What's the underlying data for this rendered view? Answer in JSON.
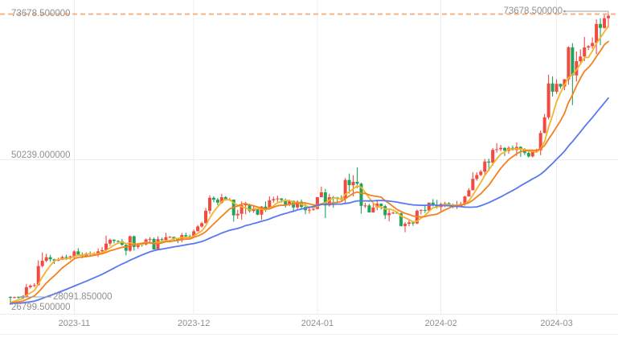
{
  "chart_data": {
    "type": "candlestick",
    "title": "",
    "legend": [],
    "grid": true,
    "colors": {
      "up": "#f04a41",
      "down": "#22a35c",
      "grid": "#ededed",
      "grid_faint": "#f2f2f2",
      "label_text": "#909090",
      "callout_line": "#9aa0a6",
      "last_price_dash": "#f3b486",
      "background": "#ffffff"
    },
    "y_axis": {
      "max": 73678.5,
      "mid": 50239.0,
      "min": 26799.5,
      "labels": {
        "max": "73678.500000",
        "mid": "50239.000000",
        "min": "26799.500000"
      }
    },
    "x_axis": {
      "labels": [
        {
          "text": "2023-11",
          "index": 16
        },
        {
          "text": "2023-12",
          "index": 46
        },
        {
          "text": "2024-01",
          "index": 77
        },
        {
          "text": "2024-02",
          "index": 108
        },
        {
          "text": "2024-03",
          "index": 137
        }
      ]
    },
    "annotations": {
      "last_price_line": {
        "value": 73678.5,
        "label": "73678.500000"
      },
      "last_price_callout": {
        "label": "73678.500000"
      },
      "open_ref_callout": {
        "value": 28091.85,
        "label": "28091.850000"
      }
    },
    "ma": {
      "periods": [
        5,
        10,
        30
      ],
      "colors": [
        "#f6b32b",
        "#f2821e",
        "#5878f0"
      ],
      "pre_window_value": 27000
    },
    "candles": [
      [
        "2023-10-16",
        28091.85,
        28210,
        26799.5,
        28020
      ],
      [
        "2023-10-17",
        28020,
        28160,
        27880,
        28060
      ],
      [
        "2023-10-18",
        28060,
        28190,
        27820,
        27960
      ],
      [
        "2023-10-19",
        27960,
        28140,
        27870,
        28090
      ],
      [
        "2023-10-20",
        28090,
        30180,
        28010,
        29680
      ],
      [
        "2023-10-21",
        29680,
        30120,
        29440,
        29920
      ],
      [
        "2023-10-22",
        29920,
        30310,
        29690,
        29990
      ],
      [
        "2023-10-23",
        29990,
        34020,
        29900,
        33080
      ],
      [
        "2023-10-24",
        33080,
        35280,
        32850,
        33920
      ],
      [
        "2023-10-25",
        33920,
        35040,
        33700,
        34500
      ],
      [
        "2023-10-26",
        34500,
        34890,
        33780,
        34160
      ],
      [
        "2023-10-27",
        34160,
        34260,
        33410,
        33910
      ],
      [
        "2023-10-28",
        33910,
        34410,
        33860,
        34090
      ],
      [
        "2023-10-29",
        34090,
        34760,
        34030,
        34530
      ],
      [
        "2023-10-30",
        34530,
        34890,
        34060,
        34500
      ],
      [
        "2023-10-31",
        34500,
        34730,
        34110,
        34650
      ],
      [
        "2023-11-01",
        34650,
        35610,
        34100,
        35440
      ],
      [
        "2023-11-02",
        35440,
        35960,
        34780,
        34940
      ],
      [
        "2023-11-03",
        34940,
        35280,
        34340,
        34730
      ],
      [
        "2023-11-04",
        34730,
        35290,
        34610,
        35080
      ],
      [
        "2023-11-05",
        35080,
        35430,
        34550,
        35050
      ],
      [
        "2023-11-06",
        35050,
        35310,
        34740,
        35060
      ],
      [
        "2023-11-07",
        35060,
        35910,
        34540,
        35450
      ],
      [
        "2023-11-08",
        35450,
        36120,
        35110,
        35640
      ],
      [
        "2023-11-09",
        35640,
        37980,
        35590,
        36700
      ],
      [
        "2023-11-10",
        36700,
        37510,
        36330,
        37310
      ],
      [
        "2023-11-11",
        37310,
        37410,
        36720,
        37130
      ],
      [
        "2023-11-12",
        37130,
        37230,
        36740,
        37070
      ],
      [
        "2023-11-13",
        37070,
        37430,
        36360,
        36490
      ],
      [
        "2023-11-14",
        36490,
        36760,
        34810,
        35550
      ],
      [
        "2023-11-15",
        35550,
        37980,
        35370,
        37880
      ],
      [
        "2023-11-16",
        37880,
        37990,
        35560,
        36160
      ],
      [
        "2023-11-17",
        36160,
        36760,
        35860,
        36610
      ],
      [
        "2023-11-18",
        36610,
        36860,
        36210,
        36570
      ],
      [
        "2023-11-19",
        36570,
        37510,
        36410,
        37360
      ],
      [
        "2023-11-20",
        37360,
        37760,
        36880,
        37450
      ],
      [
        "2023-11-21",
        37450,
        37660,
        35740,
        35750
      ],
      [
        "2023-11-22",
        35750,
        37870,
        35640,
        37410
      ],
      [
        "2023-11-23",
        37410,
        37660,
        36870,
        37290
      ],
      [
        "2023-11-24",
        37290,
        38430,
        37260,
        37720
      ],
      [
        "2023-11-25",
        37720,
        37900,
        37590,
        37780
      ],
      [
        "2023-11-26",
        37780,
        37830,
        37160,
        37450
      ],
      [
        "2023-11-27",
        37450,
        37590,
        36760,
        37240
      ],
      [
        "2023-11-28",
        37240,
        38390,
        36910,
        38060
      ],
      [
        "2023-11-29",
        38060,
        38450,
        37570,
        37860
      ],
      [
        "2023-11-30",
        37860,
        38160,
        37510,
        37710
      ],
      [
        "2023-12-01",
        37710,
        38960,
        37630,
        38680
      ],
      [
        "2023-12-02",
        38680,
        39710,
        38660,
        39450
      ],
      [
        "2023-12-03",
        39450,
        40210,
        39280,
        39970
      ],
      [
        "2023-12-04",
        39970,
        42430,
        39970,
        41990
      ],
      [
        "2023-12-05",
        41990,
        44490,
        41430,
        44080
      ],
      [
        "2023-12-06",
        44080,
        44310,
        43360,
        43770
      ],
      [
        "2023-12-07",
        43770,
        44060,
        42880,
        43290
      ],
      [
        "2023-12-08",
        43290,
        44710,
        43090,
        44170
      ],
      [
        "2023-12-09",
        44170,
        44370,
        43610,
        43720
      ],
      [
        "2023-12-10",
        43720,
        44060,
        43580,
        43790
      ],
      [
        "2023-12-11",
        43790,
        43810,
        40230,
        41250
      ],
      [
        "2023-12-12",
        41250,
        42130,
        40670,
        41490
      ],
      [
        "2023-12-13",
        41490,
        43490,
        40560,
        42870
      ],
      [
        "2023-12-14",
        42870,
        43430,
        41410,
        43020
      ],
      [
        "2023-12-15",
        43020,
        43090,
        41670,
        41940
      ],
      [
        "2023-12-16",
        41940,
        42710,
        41650,
        42280
      ],
      [
        "2023-12-17",
        42280,
        42420,
        41260,
        41360
      ],
      [
        "2023-12-18",
        41360,
        42760,
        40540,
        42660
      ],
      [
        "2023-12-19",
        42660,
        43490,
        41820,
        42260
      ],
      [
        "2023-12-20",
        42260,
        44290,
        42220,
        43670
      ],
      [
        "2023-12-21",
        43670,
        44250,
        43300,
        43860
      ],
      [
        "2023-12-22",
        43860,
        44410,
        43450,
        43970
      ],
      [
        "2023-12-23",
        43970,
        44010,
        43300,
        43720
      ],
      [
        "2023-12-24",
        43720,
        43950,
        42510,
        42990
      ],
      [
        "2023-12-25",
        42990,
        43810,
        42730,
        43580
      ],
      [
        "2023-12-26",
        43580,
        43610,
        41820,
        42520
      ],
      [
        "2023-12-27",
        42520,
        43690,
        42110,
        43440
      ],
      [
        "2023-12-28",
        43440,
        43810,
        42290,
        42600
      ],
      [
        "2023-12-29",
        42600,
        43130,
        41440,
        42070
      ],
      [
        "2023-12-30",
        42070,
        42610,
        41530,
        42140
      ],
      [
        "2023-12-31",
        42140,
        42880,
        41980,
        42280
      ],
      [
        "2024-01-01",
        42280,
        44210,
        42190,
        44170
      ],
      [
        "2024-01-02",
        44170,
        45890,
        44160,
        44960
      ],
      [
        "2024-01-03",
        44960,
        45510,
        40810,
        42840
      ],
      [
        "2024-01-04",
        42840,
        44740,
        42650,
        44180
      ],
      [
        "2024-01-05",
        44180,
        44360,
        42460,
        44160
      ],
      [
        "2024-01-06",
        44160,
        44220,
        43430,
        43970
      ],
      [
        "2024-01-07",
        43970,
        44490,
        43610,
        43940
      ],
      [
        "2024-01-08",
        43940,
        47260,
        43190,
        46950
      ],
      [
        "2024-01-09",
        46950,
        47980,
        44760,
        46110
      ],
      [
        "2024-01-10",
        46110,
        47710,
        44310,
        46650
      ],
      [
        "2024-01-11",
        46650,
        48980,
        45620,
        46340
      ],
      [
        "2024-01-12",
        46340,
        46520,
        41510,
        42780
      ],
      [
        "2024-01-13",
        42780,
        43260,
        42450,
        42840
      ],
      [
        "2024-01-14",
        42840,
        43090,
        41700,
        41720
      ],
      [
        "2024-01-15",
        41720,
        43360,
        41690,
        42510
      ],
      [
        "2024-01-16",
        42510,
        43580,
        42060,
        43130
      ],
      [
        "2024-01-17",
        43130,
        43200,
        42200,
        42740
      ],
      [
        "2024-01-18",
        42740,
        42940,
        40640,
        41270
      ],
      [
        "2024-01-19",
        41270,
        42150,
        40290,
        41620
      ],
      [
        "2024-01-20",
        41620,
        41860,
        41450,
        41670
      ],
      [
        "2024-01-21",
        41670,
        41890,
        41510,
        41580
      ],
      [
        "2024-01-22",
        41580,
        41700,
        39440,
        39530
      ],
      [
        "2024-01-23",
        39530,
        40160,
        38530,
        39880
      ],
      [
        "2024-01-24",
        39880,
        40510,
        39490,
        40100
      ],
      [
        "2024-01-25",
        40100,
        40300,
        39560,
        39940
      ],
      [
        "2024-01-26",
        39940,
        42200,
        39830,
        41990
      ],
      [
        "2024-01-27",
        41990,
        42200,
        41400,
        42120
      ],
      [
        "2024-01-28",
        42120,
        42840,
        41630,
        42030
      ],
      [
        "2024-01-29",
        42030,
        43320,
        41810,
        43300
      ],
      [
        "2024-01-30",
        43300,
        43880,
        42690,
        42940
      ],
      [
        "2024-01-31",
        42940,
        43740,
        42360,
        42580
      ],
      [
        "2024-02-01",
        42580,
        43290,
        41900,
        43080
      ],
      [
        "2024-02-02",
        43080,
        43450,
        42560,
        43190
      ],
      [
        "2024-02-03",
        43190,
        43390,
        42890,
        43010
      ],
      [
        "2024-02-04",
        43010,
        43130,
        42390,
        42580
      ],
      [
        "2024-02-05",
        42580,
        43560,
        42270,
        42700
      ],
      [
        "2024-02-06",
        42700,
        43380,
        42580,
        43090
      ],
      [
        "2024-02-07",
        43090,
        44390,
        42800,
        44280
      ],
      [
        "2024-02-08",
        44280,
        45620,
        44250,
        45290
      ],
      [
        "2024-02-09",
        45290,
        48180,
        45270,
        47130
      ],
      [
        "2024-02-10",
        47130,
        48190,
        46830,
        47750
      ],
      [
        "2024-02-11",
        47750,
        48560,
        47580,
        48290
      ],
      [
        "2024-02-12",
        48290,
        50340,
        47720,
        49920
      ],
      [
        "2024-02-13",
        49920,
        50390,
        48360,
        49740
      ],
      [
        "2024-02-14",
        49740,
        52090,
        49270,
        51800
      ],
      [
        "2024-02-15",
        51800,
        52860,
        51330,
        51900
      ],
      [
        "2024-02-16",
        51900,
        52600,
        51600,
        52120
      ],
      [
        "2024-02-17",
        52120,
        52210,
        50800,
        51660
      ],
      [
        "2024-02-18",
        51660,
        52390,
        51190,
        52130
      ],
      [
        "2024-02-19",
        52130,
        52500,
        51700,
        51780
      ],
      [
        "2024-02-20",
        51780,
        53000,
        50820,
        52280
      ],
      [
        "2024-02-21",
        52280,
        52380,
        50660,
        51850
      ],
      [
        "2024-02-22",
        51850,
        52080,
        50950,
        51300
      ],
      [
        "2024-02-23",
        51300,
        51550,
        50540,
        50740
      ],
      [
        "2024-02-24",
        50740,
        51710,
        50590,
        51570
      ],
      [
        "2024-02-25",
        51570,
        51970,
        51300,
        51730
      ],
      [
        "2024-02-26",
        51730,
        54920,
        50940,
        54520
      ],
      [
        "2024-02-27",
        54520,
        57590,
        54460,
        57040
      ],
      [
        "2024-02-28",
        57040,
        63920,
        56700,
        62500
      ],
      [
        "2024-02-29",
        62500,
        63650,
        60390,
        61170
      ],
      [
        "2024-03-01",
        61170,
        63160,
        60820,
        62440
      ],
      [
        "2024-03-02",
        62440,
        62450,
        61660,
        61990
      ],
      [
        "2024-03-03",
        61990,
        63240,
        61400,
        63160
      ],
      [
        "2024-03-04",
        63160,
        68500,
        62310,
        68330
      ],
      [
        "2024-03-05",
        68330,
        69000,
        59010,
        63800
      ],
      [
        "2024-03-06",
        63800,
        67650,
        62790,
        66090
      ],
      [
        "2024-03-07",
        66090,
        67990,
        65610,
        66850
      ],
      [
        "2024-03-08",
        66850,
        70000,
        66080,
        68300
      ],
      [
        "2024-03-09",
        68300,
        68660,
        67870,
        68500
      ],
      [
        "2024-03-10",
        68500,
        69910,
        68110,
        69020
      ],
      [
        "2024-03-11",
        69020,
        72810,
        67200,
        72080
      ],
      [
        "2024-03-12",
        72080,
        73010,
        68640,
        71450
      ],
      [
        "2024-03-13",
        71450,
        73640,
        71340,
        73010
      ],
      [
        "2024-03-14",
        73010,
        73678.5,
        71510,
        73400
      ]
    ]
  }
}
